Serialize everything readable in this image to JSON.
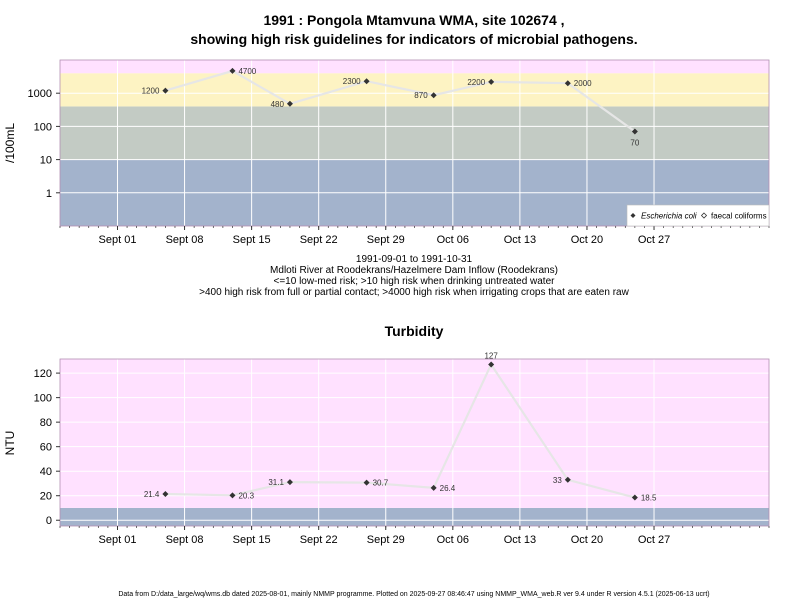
{
  "chart_data": [
    {
      "type": "line",
      "title_line1": "1991 : Pongola Mtamvuna WMA, site 102674 ,",
      "title_line2": "showing high risk guidelines for indicators of microbial pathogens.",
      "ylabel": "/100mL",
      "yscale": "log",
      "ylim": [
        0.1,
        10000
      ],
      "ytick_values": [
        1,
        10,
        100,
        1000
      ],
      "ytick_labels": [
        "1",
        "10",
        "100",
        "1000"
      ],
      "xlim": [
        "1991-08-26",
        "1991-11-08"
      ],
      "xtick_dates": [
        "1991-09-01",
        "1991-09-08",
        "1991-09-15",
        "1991-09-22",
        "1991-09-29",
        "1991-10-06",
        "1991-10-13",
        "1991-10-20",
        "1991-10-27"
      ],
      "xtick_labels": [
        "Sept 01",
        "Sept 08",
        "Sept 15",
        "Sept 22",
        "Sept 29",
        "Oct 06",
        "Oct 13",
        "Oct 20",
        "Oct 27"
      ],
      "bands": [
        {
          "from": 0.1,
          "to": 10,
          "color": "#a3b3cc"
        },
        {
          "from": 10,
          "to": 400,
          "color": "#c3cbc4"
        },
        {
          "from": 400,
          "to": 4000,
          "color": "#fdf3c3"
        },
        {
          "from": 4000,
          "to": 10000,
          "color": "#ffe1ff"
        }
      ],
      "series": [
        {
          "name": "Escherichia coli",
          "line_color": "#e6e6e6",
          "point_color": "#333333",
          "x": [
            "1991-09-06",
            "1991-09-13",
            "1991-09-19",
            "1991-09-27",
            "1991-10-04",
            "1991-10-10",
            "1991-10-18",
            "1991-10-25"
          ],
          "y": [
            1200,
            4700,
            480,
            2300,
            870,
            2200,
            2000,
            70
          ],
          "labels": [
            "1200",
            "4700",
            "480",
            "2300",
            "870",
            "2200",
            "2000",
            "70"
          ],
          "label_pos": [
            "left",
            "right",
            "left",
            "left",
            "left",
            "left",
            "right",
            "below"
          ]
        }
      ],
      "legend": {
        "position": "bottom-right",
        "items": [
          {
            "label": "Escherichia coli",
            "marker": "filled-diamond"
          },
          {
            "label": "faecal coliforms",
            "marker": "open-diamond"
          }
        ]
      },
      "notes": [
        "1991-09-01 to 1991-10-31",
        "Mdloti River at Roodekrans/Hazelmere Dam Inflow (Roodekrans)",
        "<=10 low-med risk; >10 high risk when drinking untreated water",
        ">400 high risk from full or partial contact; >4000 high risk when irrigating crops that are eaten raw"
      ]
    },
    {
      "type": "line",
      "title": "Turbidity",
      "ylabel": "NTU",
      "ylim": [
        -4.7,
        131.5
      ],
      "ytick_values": [
        0,
        20,
        40,
        60,
        80,
        100,
        120
      ],
      "ytick_labels": [
        "0",
        "20",
        "40",
        "60",
        "80",
        "100",
        "120"
      ],
      "xlim": [
        "1991-08-26",
        "1991-11-08"
      ],
      "xtick_dates": [
        "1991-09-01",
        "1991-09-08",
        "1991-09-15",
        "1991-09-22",
        "1991-09-29",
        "1991-10-06",
        "1991-10-13",
        "1991-10-20",
        "1991-10-27"
      ],
      "xtick_labels": [
        "Sept 01",
        "Sept 08",
        "Sept 15",
        "Sept 22",
        "Sept 29",
        "Oct 06",
        "Oct 13",
        "Oct 20",
        "Oct 27"
      ],
      "bands": [
        {
          "from": -4.7,
          "to": 10,
          "color": "#a3b3cc"
        },
        {
          "from": 10,
          "to": 131.5,
          "color": "#ffe1ff"
        }
      ],
      "series": [
        {
          "line_color": "#e6e6e6",
          "point_color": "#333333",
          "x": [
            "1991-09-06",
            "1991-09-13",
            "1991-09-19",
            "1991-09-27",
            "1991-10-04",
            "1991-10-10",
            "1991-10-18",
            "1991-10-25"
          ],
          "y": [
            21.4,
            20.3,
            31.1,
            30.7,
            26.4,
            127,
            33,
            18.5
          ],
          "labels": [
            "21.4",
            "20.3",
            "31.1",
            "30.7",
            "26.4",
            "127",
            "33",
            "18.5"
          ],
          "label_pos": [
            "left",
            "right",
            "left",
            "right",
            "right",
            "above",
            "left",
            "right"
          ]
        }
      ]
    }
  ],
  "footer": "Data from D:/data_large/wq/wms.db dated 2025-08-01, mainly NMMP programme. Plotted on 2025-09-27 08:46:47 using NMMP_WMA_web.R ver 9.4 under R version 4.5.1 (2025-06-13 ucrt)"
}
